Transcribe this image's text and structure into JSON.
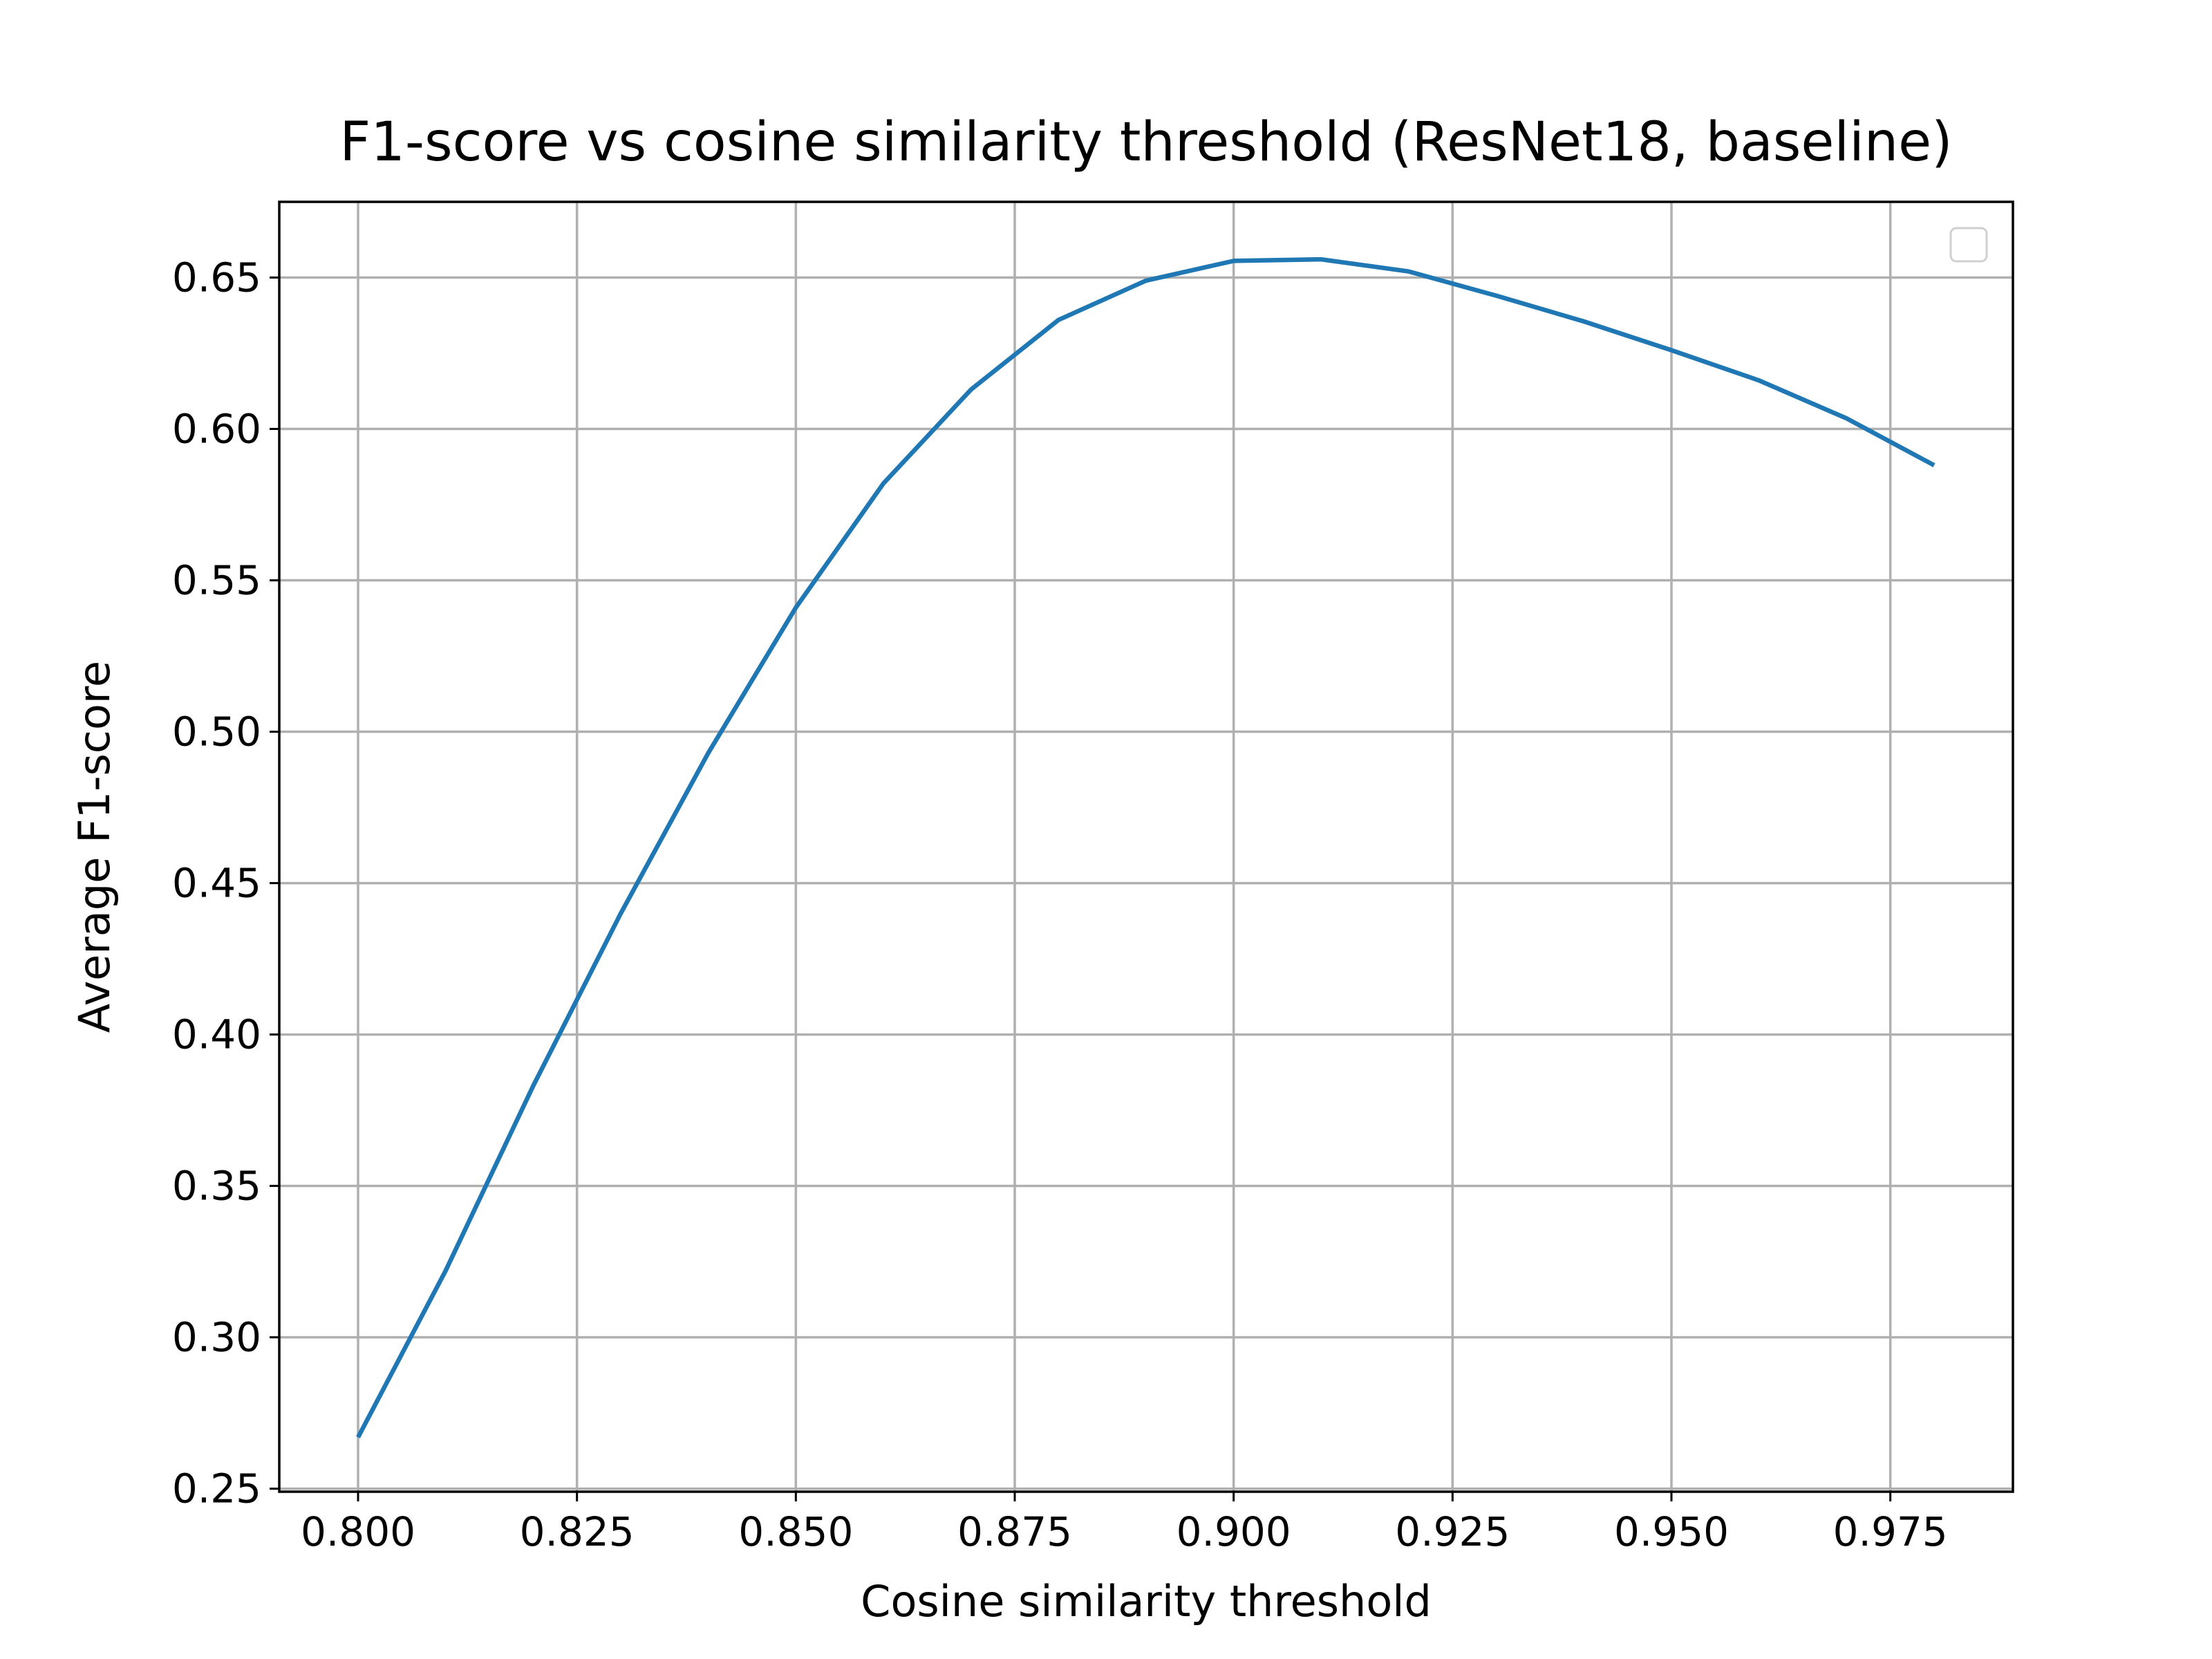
{
  "chart_data": {
    "type": "line",
    "title": "F1-score vs cosine similarity threshold (ResNet18, baseline)",
    "xlabel": "Cosine similarity threshold",
    "ylabel": "Average F1-score",
    "xlim": [
      0.791,
      0.989
    ],
    "ylim": [
      0.249,
      0.675
    ],
    "x_ticks": [
      0.8,
      0.825,
      0.85,
      0.875,
      0.9,
      0.925,
      0.95,
      0.975
    ],
    "x_tick_labels": [
      "0.800",
      "0.825",
      "0.850",
      "0.875",
      "0.900",
      "0.925",
      "0.950",
      "0.975"
    ],
    "y_ticks": [
      0.25,
      0.3,
      0.35,
      0.4,
      0.45,
      0.5,
      0.55,
      0.6,
      0.65
    ],
    "y_tick_labels": [
      "0.25",
      "0.30",
      "0.35",
      "0.40",
      "0.45",
      "0.50",
      "0.55",
      "0.60",
      "0.65"
    ],
    "grid": true,
    "legend": {
      "placement": "top-right",
      "entries": []
    },
    "series": [
      {
        "color": "#1f77b4",
        "x": [
          0.8,
          0.81,
          0.82,
          0.83,
          0.84,
          0.85,
          0.86,
          0.87,
          0.88,
          0.89,
          0.9,
          0.91,
          0.92,
          0.93,
          0.94,
          0.95,
          0.96,
          0.97,
          0.98
        ],
        "y": [
          0.267,
          0.322,
          0.383,
          0.44,
          0.493,
          0.541,
          0.582,
          0.613,
          0.636,
          0.649,
          0.6555,
          0.656,
          0.652,
          0.644,
          0.6355,
          0.626,
          0.616,
          0.6035,
          0.588
        ]
      }
    ]
  }
}
